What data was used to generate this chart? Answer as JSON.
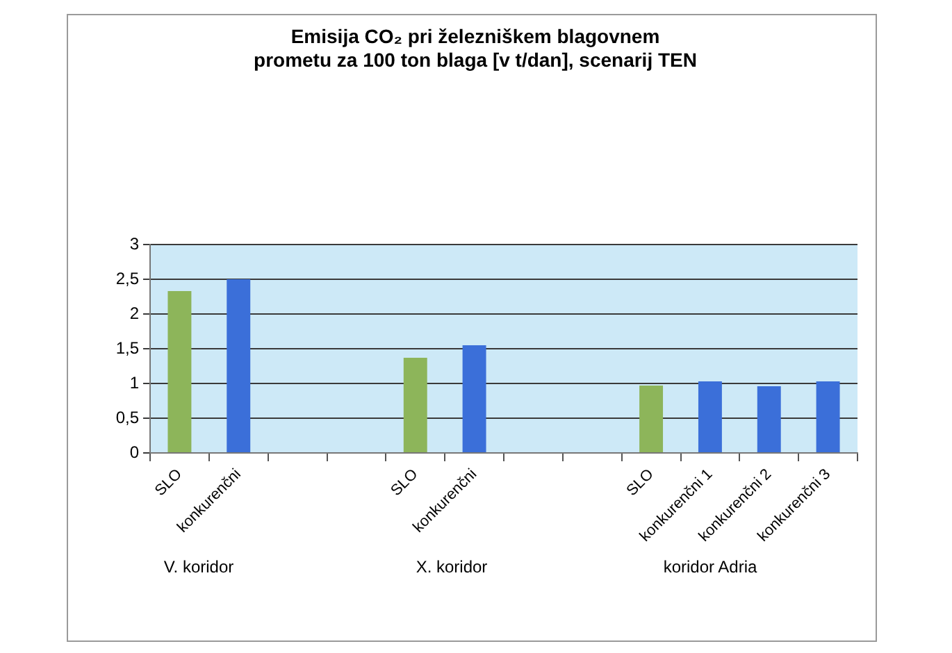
{
  "chart_data": {
    "type": "bar",
    "title": "Emisija CO₂ pri železniškem blagovnem prometu za 100 ton blaga [v t/dan], scenarij TEN",
    "categories": [
      "SLO",
      "konkurenčni",
      null,
      null,
      "SLO",
      "konkurenčni",
      null,
      null,
      "SLO",
      "konkurenčni 1",
      "konkurenčni 2",
      "konkurenčni 3"
    ],
    "values": [
      2.33,
      2.5,
      null,
      null,
      1.37,
      1.55,
      null,
      null,
      0.97,
      1.03,
      0.96,
      1.03
    ],
    "colors": [
      "#8db55a",
      "#3b6fd9",
      null,
      null,
      "#8db55a",
      "#3b6fd9",
      null,
      null,
      "#8db55a",
      "#3b6fd9",
      "#3b6fd9",
      "#3b6fd9"
    ],
    "ylim": [
      0,
      3
    ],
    "yticks": [
      0,
      {
        "value": 0.5,
        "label": "0,5"
      },
      1,
      {
        "value": 1.5,
        "label": "1,5"
      },
      2,
      {
        "value": 2.5,
        "label": "2,5"
      },
      3
    ],
    "grid": "y",
    "legend": false,
    "annotations": [
      "V. koridor",
      "X. koridor",
      "koridor Adria"
    ]
  }
}
